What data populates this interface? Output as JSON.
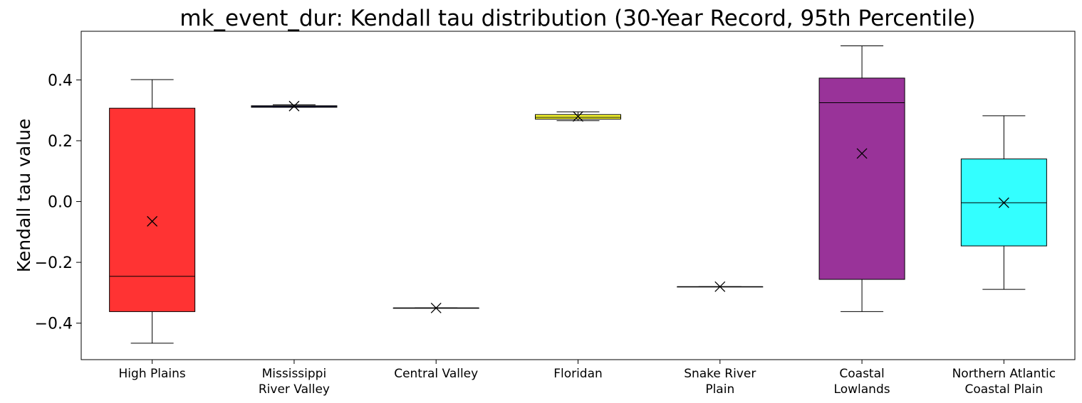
{
  "chart_data": {
    "type": "box",
    "title": "mk_event_dur: Kendall tau distribution (30-Year Record, 95th Percentile)",
    "xlabel": "",
    "ylabel": "Kendall tau value",
    "ylim": [
      -0.52,
      0.56
    ],
    "yticks": [
      {
        "value": -0.4,
        "label": "−0.4"
      },
      {
        "value": -0.2,
        "label": "−0.2"
      },
      {
        "value": 0.0,
        "label": "0.0"
      },
      {
        "value": 0.2,
        "label": "0.2"
      },
      {
        "value": 0.4,
        "label": "0.4"
      }
    ],
    "grid": false,
    "mean_marker": "x",
    "categories": [
      {
        "lines": [
          "High Plains"
        ]
      },
      {
        "lines": [
          "Mississippi",
          "River Valley"
        ]
      },
      {
        "lines": [
          "Central Valley"
        ]
      },
      {
        "lines": [
          "Floridan"
        ]
      },
      {
        "lines": [
          "Snake River",
          "Plain"
        ]
      },
      {
        "lines": [
          "Coastal",
          "Lowlands"
        ]
      },
      {
        "lines": [
          "Northern Atlantic",
          "Coastal Plain"
        ]
      }
    ],
    "boxes": [
      {
        "color": "#ff0000",
        "whisker_low": -0.466,
        "q1": -0.362,
        "median": -0.246,
        "q3": 0.307,
        "whisker_high": 0.401,
        "mean": -0.065
      },
      {
        "color": "#0000cd",
        "whisker_low": 0.31,
        "q1": 0.31,
        "median": 0.3125,
        "q3": 0.315,
        "whisker_high": 0.318,
        "mean": 0.314
      },
      {
        "color": "#555555",
        "whisker_low": -0.35,
        "q1": -0.35,
        "median": -0.35,
        "q3": -0.35,
        "whisker_high": -0.35,
        "mean": -0.35
      },
      {
        "color": "#ffff00",
        "whisker_low": 0.266,
        "q1": 0.271,
        "median": 0.277,
        "q3": 0.286,
        "whisker_high": 0.295,
        "mean": 0.28
      },
      {
        "color": "#555555",
        "whisker_low": -0.28,
        "q1": -0.28,
        "median": -0.28,
        "q3": -0.28,
        "whisker_high": -0.28,
        "mean": -0.28
      },
      {
        "color": "#800080",
        "whisker_low": -0.362,
        "q1": -0.256,
        "median": 0.325,
        "q3": 0.406,
        "whisker_high": 0.512,
        "mean": 0.158
      },
      {
        "color": "#00ffff",
        "whisker_low": -0.289,
        "q1": -0.146,
        "median": -0.004,
        "q3": 0.14,
        "whisker_high": 0.282,
        "mean": -0.004
      }
    ]
  }
}
